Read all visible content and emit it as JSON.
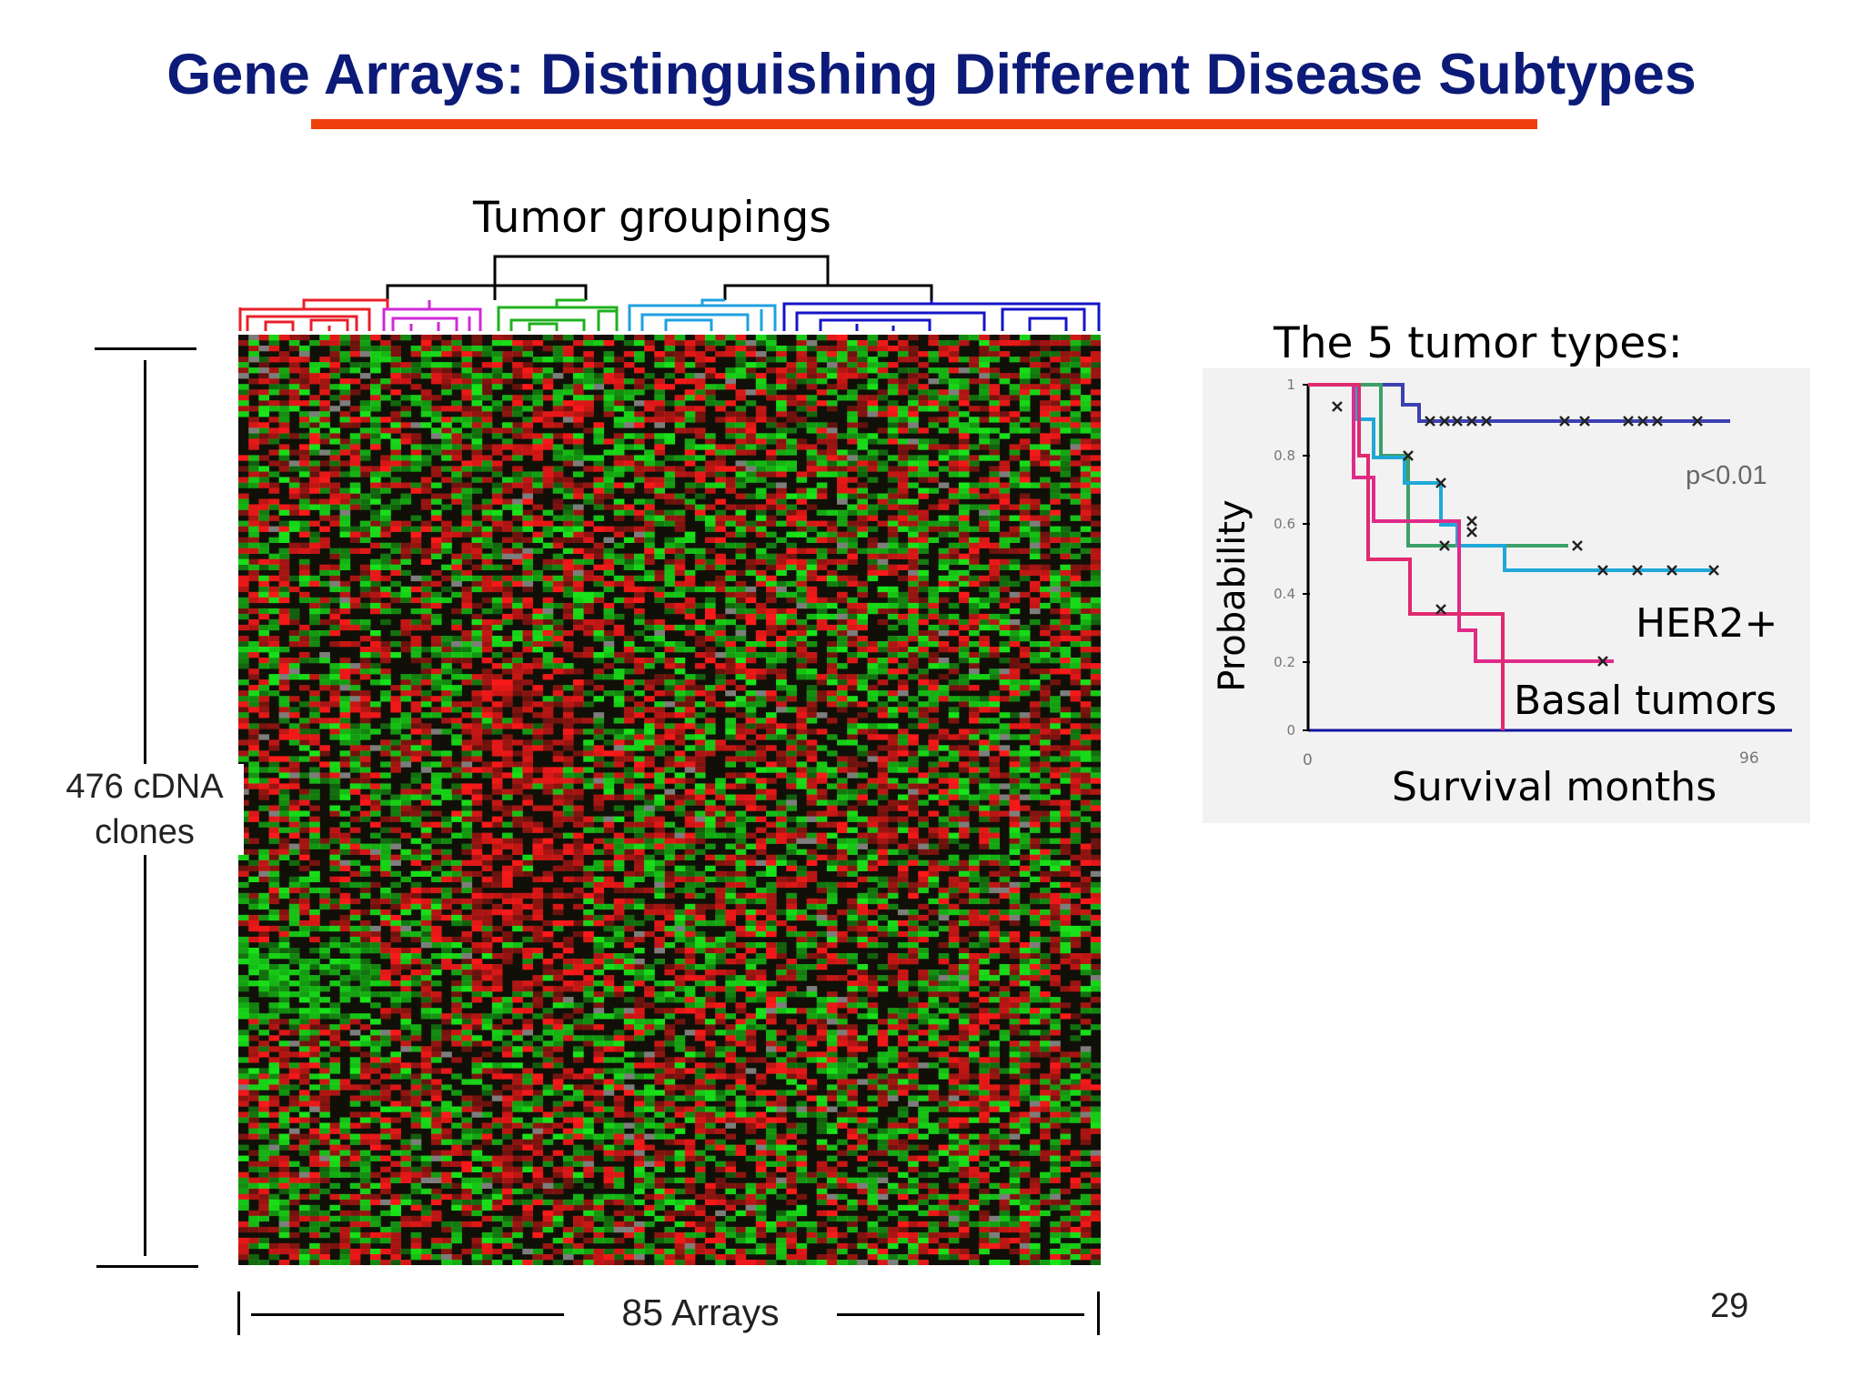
{
  "slide": {
    "title": "Gene Arrays: Distinguishing Different Disease Subtypes",
    "title_color": "#0c1a78",
    "rule_color": "#f0400e",
    "page_number": "29"
  },
  "heatmap_panel": {
    "groupings_label": "Tumor groupings",
    "rows_label": "476 cDNA clones",
    "columns_label": "85 Arrays",
    "group_colors": [
      "#e8202a",
      "#d02ad8",
      "#1fb01f",
      "#1fa0e0",
      "#1414c8"
    ],
    "colors": {
      "up": "#ff1a1a",
      "down": "#19e619",
      "neutral": "#101008",
      "missing": "#8a8a8a"
    }
  },
  "survival_panel": {
    "heading": "The 5 tumor types:",
    "ylabel": "Probability",
    "xlabel": "Survival months",
    "p_value": "p<0.01",
    "her2_label": "HER2+",
    "basal_label": "Basal tumors",
    "y_ticks": [
      "1",
      "0.8",
      "0.6",
      "0.4",
      "0.2",
      "0"
    ],
    "x_ticks": [
      "0",
      "96"
    ]
  }
}
